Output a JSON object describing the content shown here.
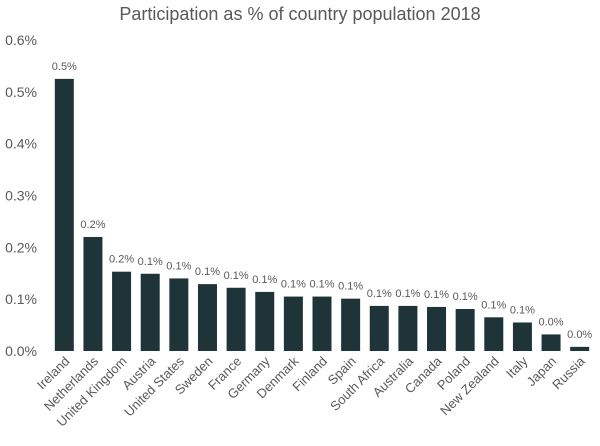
{
  "chart_data": {
    "type": "bar",
    "title": "Participation as % of country population 2018",
    "xlabel": "",
    "ylabel": "",
    "ylim": [
      0,
      0.6
    ],
    "yticks": [
      "0.0%",
      "0.1%",
      "0.2%",
      "0.3%",
      "0.4%",
      "0.5%",
      "0.6%"
    ],
    "grid": false,
    "bar_color": "#1e3439",
    "categories": [
      "Ireland",
      "Netherlands",
      "United Kingdom",
      "Austria",
      "United States",
      "Sweden",
      "France",
      "Germany",
      "Denmark",
      "Finland",
      "Spain",
      "South Africa",
      "Australia",
      "Canada",
      "Poland",
      "New Zealand",
      "Italy",
      "Japan",
      "Russia"
    ],
    "values": [
      0.525,
      0.22,
      0.153,
      0.149,
      0.14,
      0.129,
      0.122,
      0.114,
      0.105,
      0.105,
      0.101,
      0.087,
      0.087,
      0.085,
      0.081,
      0.065,
      0.055,
      0.032,
      0.008
    ],
    "data_labels": [
      "0.5%",
      "0.2%",
      "0.2%",
      "0.1%",
      "0.1%",
      "0.1%",
      "0.1%",
      "0.1%",
      "0.1%",
      "0.1%",
      "0.1%",
      "0.1%",
      "0.1%",
      "0.1%",
      "0.1%",
      "0.1%",
      "0.1%",
      "0.0%",
      "0.0%"
    ]
  }
}
